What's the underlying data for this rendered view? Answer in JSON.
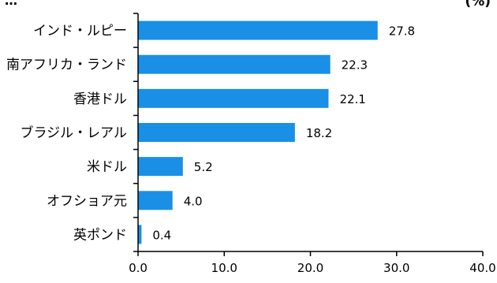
{
  "chart_data": {
    "type": "bar",
    "orientation": "horizontal",
    "title": "",
    "top_text_fragment": "…",
    "unit_label": "(%)",
    "xlabel": "",
    "ylabel": "",
    "xlim": [
      0,
      40
    ],
    "x_ticks": [
      "0.0",
      "10.0",
      "20.0",
      "30.0",
      "40.0"
    ],
    "grid": false,
    "categories": [
      "インド・ルピー",
      "南アフリカ・ランド",
      "香港ドル",
      "ブラジル・レアル",
      "米ドル",
      "オフショア元",
      "英ポンド"
    ],
    "values": [
      27.8,
      22.3,
      22.1,
      18.2,
      5.2,
      4.0,
      0.4
    ],
    "value_labels": [
      "27.8",
      "22.3",
      "22.1",
      "18.2",
      "5.2",
      "4.0",
      "0.4"
    ],
    "bar_color": "#1a8fe6"
  }
}
